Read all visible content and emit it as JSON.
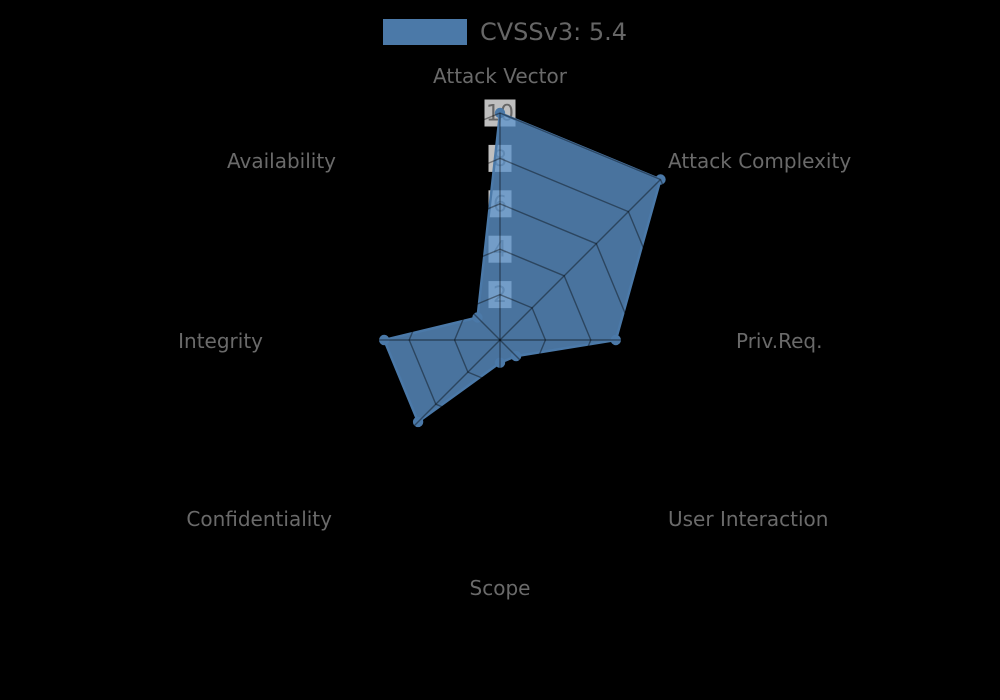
{
  "chart_data": {
    "type": "radar",
    "title": "",
    "legend": {
      "label": "CVSSv3: 5.4",
      "position": "top"
    },
    "categories": [
      "Attack Vector",
      "Attack Complexity",
      "Priv.Req.",
      "User Interaction",
      "Scope",
      "Confidentiality",
      "Integrity",
      "Availability"
    ],
    "series": [
      {
        "name": "CVSSv3: 5.4",
        "values": [
          10,
          10,
          5.1,
          1.0,
          1.0,
          5.1,
          5.1,
          1.4
        ]
      }
    ],
    "rlim": [
      0,
      10
    ],
    "radial_ticks": [
      2,
      4,
      6,
      8,
      10
    ],
    "grid": "polygon-web",
    "start_axis": "top",
    "direction": "clockwise",
    "colors": {
      "background": "#000000",
      "series_stroke": "#4b79a8",
      "series_fill": "#5d94ca",
      "series_fill_opacity": 0.78,
      "grid_line": "rgba(0,0,0,0.4)",
      "axis_label": "#6a6a6a",
      "tick_text": "#666666",
      "tick_backdrop": "rgba(255,255,255,0.75)",
      "legend_text": "#666666"
    }
  }
}
